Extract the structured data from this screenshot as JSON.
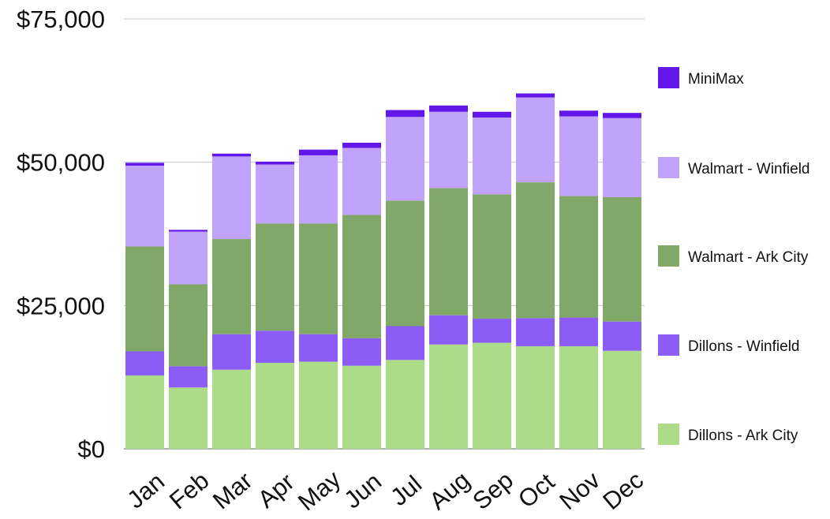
{
  "chart_data": {
    "type": "bar",
    "stacked": true,
    "title": "",
    "xlabel": "",
    "ylabel": "",
    "ylim": [
      0,
      75000
    ],
    "y_ticks": [
      0,
      25000,
      50000,
      75000
    ],
    "y_tick_labels": [
      "$0",
      "$25,000",
      "$50,000",
      "$75,000"
    ],
    "grid": true,
    "legend_position": "right",
    "categories": [
      "Jan",
      "Feb",
      "Mar",
      "Apr",
      "May",
      "Jun",
      "Jul",
      "Aug",
      "Sep",
      "Oct",
      "Nov",
      "Dec"
    ],
    "series": [
      {
        "name": "Dillons - Ark City",
        "color": "#acdc88",
        "values": [
          12800,
          10700,
          13800,
          15000,
          15200,
          14500,
          15500,
          18200,
          18500,
          17900,
          17900,
          17100
        ]
      },
      {
        "name": "Dillons - Winfield",
        "color": "#8b5cf6",
        "values": [
          4200,
          3700,
          6200,
          5600,
          4800,
          4800,
          5900,
          5100,
          4200,
          4900,
          5000,
          5100
        ]
      },
      {
        "name": "Walmart - Ark City",
        "color": "#81a769",
        "values": [
          18300,
          14300,
          16600,
          18700,
          19300,
          21500,
          21900,
          22200,
          21700,
          23700,
          21200,
          21700
        ]
      },
      {
        "name": "Walmart - Winfield",
        "color": "#c0a4fc",
        "values": [
          14100,
          9200,
          14400,
          10300,
          11900,
          11700,
          14600,
          13300,
          13400,
          14800,
          13900,
          13800
        ]
      },
      {
        "name": "MiniMax",
        "color": "#6316ea",
        "values": [
          500,
          300,
          500,
          500,
          1000,
          900,
          1200,
          1100,
          1000,
          700,
          1000,
          900
        ]
      }
    ]
  }
}
